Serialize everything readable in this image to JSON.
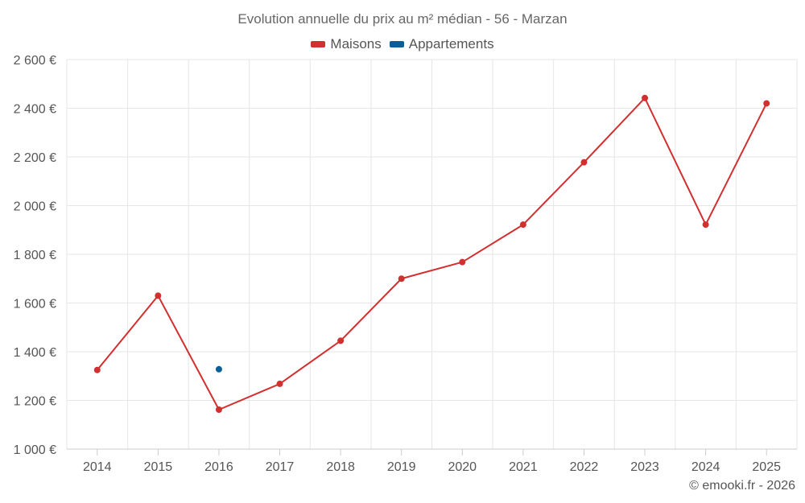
{
  "chart_data": {
    "type": "line",
    "title": "Evolution annuelle du prix au m² médian - 56 - Marzan",
    "categories": [
      "2014",
      "2015",
      "2016",
      "2017",
      "2018",
      "2019",
      "2020",
      "2021",
      "2022",
      "2023",
      "2024",
      "2025"
    ],
    "y_tick_labels": [
      "1 000 €",
      "1 200 €",
      "1 400 €",
      "1 600 €",
      "1 800 €",
      "2 000 €",
      "2 200 €",
      "2 400 €",
      "2 600 €"
    ],
    "ylim": [
      1000,
      2600
    ],
    "series": [
      {
        "name": "Maisons",
        "color": "#d32f2f",
        "values": [
          1325,
          1630,
          1162,
          1268,
          1445,
          1700,
          1768,
          1922,
          2178,
          2442,
          1922,
          2420
        ]
      },
      {
        "name": "Appartements",
        "color": "#0b5f99",
        "values": [
          null,
          null,
          1328,
          null,
          null,
          null,
          null,
          null,
          null,
          null,
          null,
          null
        ]
      }
    ],
    "grid": true,
    "legend_position": "top-center",
    "credit": "© emooki.fr - 2026"
  }
}
